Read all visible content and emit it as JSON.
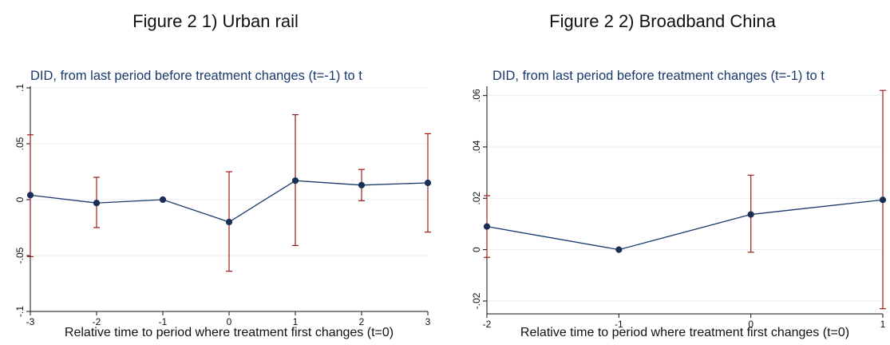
{
  "figures": [
    {
      "heading": "Figure 2 1) Urban rail",
      "chart_data": {
        "type": "line",
        "title": "DID, from last period before treatment changes (t=-1) to t",
        "xlabel": "Relative time to period where treatment first changes (t=0)",
        "ylabel": "",
        "xlim": [
          -3,
          3
        ],
        "ylim": [
          -0.1,
          0.1
        ],
        "x_ticks": [
          -3,
          -2,
          -1,
          0,
          1,
          2,
          3
        ],
        "x_tick_labels": [
          "-3",
          "-2",
          "-1",
          "0",
          "1",
          "2",
          "3"
        ],
        "y_ticks": [
          -0.1,
          -0.05,
          0,
          0.05,
          0.1
        ],
        "y_tick_labels": [
          "-.1",
          "-.05",
          "0",
          ".05",
          ".1"
        ],
        "grid": true,
        "series": [
          {
            "x": [
              -3,
              -2,
              -1,
              0,
              1,
              2,
              3
            ],
            "y": [
              0.004,
              -0.003,
              0.0,
              -0.02,
              0.017,
              0.013,
              0.015
            ],
            "ci_low": [
              -0.051,
              -0.025,
              null,
              -0.064,
              -0.041,
              -0.001,
              -0.029
            ],
            "ci_high": [
              0.058,
              0.02,
              null,
              0.025,
              0.076,
              0.027,
              0.059
            ]
          }
        ]
      }
    },
    {
      "heading": "Figure 2 2) Broadband China",
      "chart_data": {
        "type": "line",
        "title": "DID, from last period before treatment changes (t=-1) to t",
        "xlabel": "Relative time to period where treatment first changes (t=0)",
        "ylabel": "",
        "xlim": [
          -2,
          1
        ],
        "ylim": [
          -0.025,
          0.063
        ],
        "x_ticks": [
          -2,
          -1,
          0,
          1
        ],
        "x_tick_labels": [
          "-2",
          "-1",
          "0",
          "1"
        ],
        "y_ticks": [
          -0.02,
          0,
          0.02,
          0.04,
          0.06
        ],
        "y_tick_labels": [
          "-.02",
          "0",
          ".02",
          ".04",
          ".06"
        ],
        "grid": true,
        "series": [
          {
            "x": [
              -2,
              -1,
              0,
              1
            ],
            "y": [
              0.009,
              0.0,
              0.0137,
              0.0194
            ],
            "ci_low": [
              -0.003,
              null,
              -0.001,
              -0.023
            ],
            "ci_high": [
              0.021,
              null,
              0.029,
              0.062
            ]
          }
        ]
      }
    }
  ],
  "colors": {
    "line": "#1a3a6b",
    "marker": "#1a2f55",
    "ci": "#9b1c1c",
    "grid": "#e8edf1",
    "axis": "#111111"
  }
}
